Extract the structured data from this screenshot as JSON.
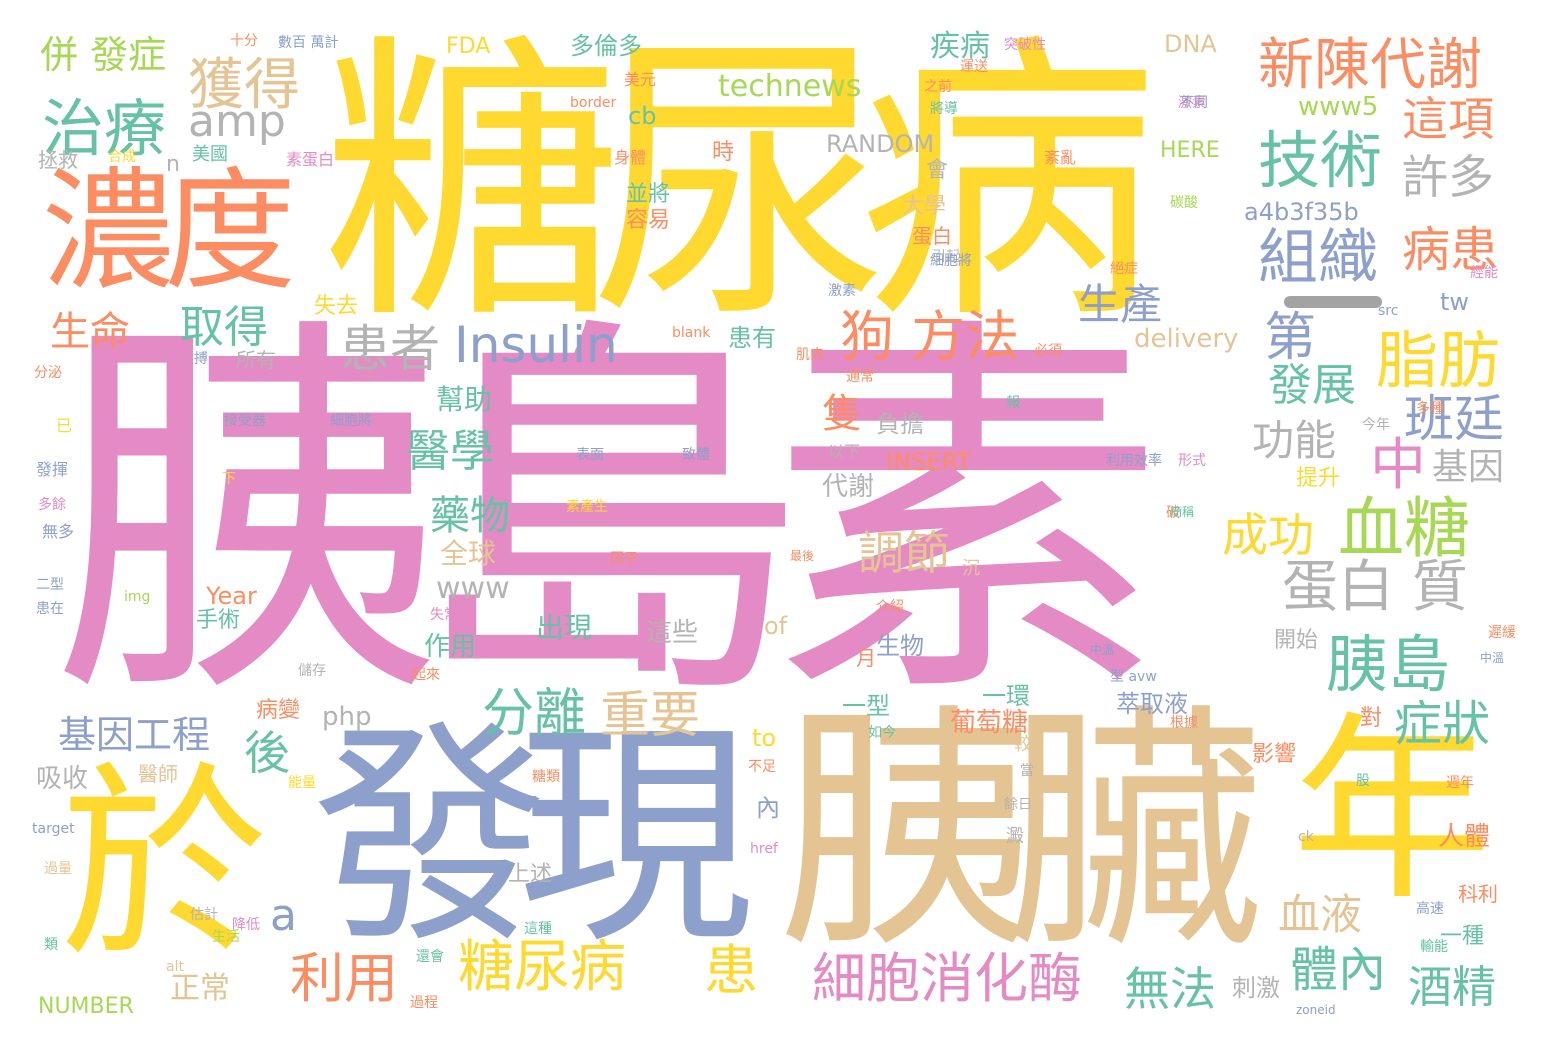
{
  "colors": {
    "pink": "#e48ac4",
    "yellow": "#ffd92f",
    "tan": "#e5c494",
    "orange": "#fc8d62",
    "blue": "#8da0cb",
    "green": "#66c2a5",
    "lime": "#a6d854",
    "gray": "#b3b3b3"
  },
  "words": {
    "w_yi_dao_su": "胰島素",
    "w_tang_niao_bing": "糖尿病",
    "w_yi_zang": "胰臟",
    "w_fa_xian": "發現",
    "w_nong_du": "濃度",
    "w_yu": "於",
    "w_nian": "年",
    "w_zhi_liao": "治療",
    "w_huo_de": "獲得",
    "w_amp": "amp",
    "w_bing_fa_zheng": "併 發症",
    "w_xin_chen_dai_xie": "新陳代謝",
    "w_zhe_xiang": "這項",
    "w_ji_shu": "技術",
    "w_xu_duo": "許多",
    "w_zu_zhi": "組織",
    "w_bing_huan": "病患",
    "w_sheng_chan": "生產",
    "w_technews": "technews",
    "w_www5": "www5",
    "w_insulin": "Insulin",
    "w_huan_zhe": "患者",
    "w_gou_fang_fa": "狗 方法",
    "w_zhi_fang": "脂肪",
    "w_di": "第",
    "w_fa_zhan": "發展",
    "w_ban_ting": "班廷",
    "w_zhong": "中",
    "w_ji_yin": "基因",
    "w_gong_neng": "功能",
    "w_cheng_gong": "成功",
    "w_xue_tang": "血糖",
    "w_dan_bai_zhi": "蛋白 質",
    "w_yi_dao": "胰島",
    "w_zheng_zhuang": "症狀",
    "w_fen_li": "分離",
    "w_zhong_yao": "重要",
    "w_ji_yin_gong_cheng": "基因工程",
    "w_yi_xue": "醫學",
    "w_yao_wu": "藥物",
    "w_tiao_jie": "調節",
    "w_qu_de": "取得",
    "w_sheng_ming": "生命",
    "w_tang_niao_bing_2": "糖尿病",
    "w_huan": "患",
    "w_xi_bao_xiao_hua_mei": "細胞消化酶",
    "w_wu_fa": "無法",
    "w_jiu_jing": "酒精",
    "w_ti_nei": "體內",
    "w_xue_ye": "血液",
    "w_li_yong": "利用",
    "w_hou": "後",
    "w_a": "a",
    "w_fda": "FDA",
    "w_duo_lun_duo": "多倫多",
    "w_ji_bing": "疾病",
    "w_dna": "DNA",
    "w_random": "RANDOM",
    "w_here": "HERE",
    "w_a4b": "a4b3f35b",
    "w_cb": "cb",
    "w_n": "n",
    "w_delivery": "delivery",
    "w_tw": "tw",
    "w_php": "php",
    "w_www": "www",
    "w_insert": "INSERT",
    "w_year": "Year",
    "w_of": "of",
    "w_to": "to",
    "w_number": "NUMBER",
    "w_target": "target",
    "w_zhe_li": "這些",
    "w_chu_xian": "出現",
    "w_zuo_yong": "作用",
    "w_shou_shu": "手術",
    "w_bing_bian": "病變",
    "w_xi_shou": "吸收",
    "w_yi_shi": "醫師",
    "w_zheng_chang": "正常",
    "w_shang_shu": "上述",
    "w_nei": "內",
    "w_yi_xing": "一型",
    "w_yi_huan": "一環",
    "w_pu_tao_tang": "葡萄糖",
    "w_cui_qu_ye": "萃取液",
    "w_ying_xiang": "影響",
    "w_ren_ti": "人體",
    "w_dui": "對",
    "w_kai_shi": "開始",
    "w_ke_li": "科利",
    "w_yi_zhong": "一種",
    "w_ci_ji": "刺激",
    "w_ti_sheng": "提升",
    "w_sheng_wu": "生物",
    "w_yue": "月",
    "w_dai_xie": "代謝",
    "w_fu_dan": "負擔",
    "w_zhi": "隻",
    "w_bang_zhu": "幫助",
    "w_quan_qiu": "全球",
    "w_huan_you": "患有",
    "w_shi_qu": "失去",
    "w_bing_jiang": "並將",
    "w_rong_yi": "容易",
    "w_da_xue": "大學",
    "w_hui": "會",
    "w_dan_bai": "蛋白",
    "w_shi": "時",
    "w_mei_guo": "美國",
    "w_zheng_jiu": "拯救",
    "w_shi_fen": "十分",
    "w_shu_bai_wan_ji": "數百 萬計",
    "w_mei_yuan": "美元",
    "w_tu_po_xing": "突破性",
    "w_shen_ti": "身體",
    "w_su_dan_bai": "素蛋白",
    "w_he_cheng": "合成",
    "w_border": "border",
    "w_bu_tong": "不同",
    "w_jiang_dao": "將導",
    "w_zhi_qian": "之前",
    "w_yun_song": "運送",
    "w_yin_qi": "引起",
    "w_ji_su": "激素",
    "w_xi_bao_jiang": "細胞將",
    "w_fen_mi": "分泌",
    "w_yi": "已",
    "w_fa_hui": "發揮",
    "w_duo_yu": "多餘",
    "w_wu_duo": "無多",
    "w_er_xing": "二型",
    "w_huan_zai": "患在",
    "w_img": "img",
    "w_shi_chang": "失常",
    "w_qi_lai": "起來",
    "w_chu_cun": "儲存",
    "w_neng_liang": "能量",
    "w_gu_ji": "估計",
    "w_jiang_di": "降低",
    "w_lei": "類",
    "w_alt": "alt",
    "w_guo_jian": "過量",
    "w_tang_lei": "糖類",
    "w_dan": "但",
    "w_huan_hui": "還會",
    "w_guo_cheng": "過程",
    "w_zhe_zhong": "這種",
    "w_sheng_huo": "生活",
    "w_href": "href",
    "w_ck": "ck",
    "w_zoneid": "zoneid",
    "w_gao_su": "高速",
    "w_zhou_nian": "週年",
    "w_chi_man": "遲緩",
    "w_zhong_liang": "中溫",
    "w_xing_ai": "型 avw",
    "w_gen_ju": "根據",
    "w_ru_jin": "如今",
    "w_bu_zu": "不足",
    "w_yu_ri": "餘日",
    "w_dang": "當",
    "w_chen": "沉",
    "w_jie_shao": "介紹",
    "w_gu": "股",
    "w_jian": "澱",
    "w_jiao": "較",
    "w_yi_xia": "以下",
    "w_biao_mian": "表面",
    "w_zhi_ti": "致體",
    "w_jie_shou_qi": "接受器",
    "w_xi_bao_jiang_2": "細胞將",
    "w_xia": "下",
    "w_su_chan_sheng": "素產生",
    "w_nei_xi_bao": "內細胞",
    "w_yin_zi": "因子",
    "w_zui_hou": "最後",
    "w_zhun_fang": "準方準確",
    "w_li_yong_lu": "利用效率",
    "w_xing_shi": "形式",
    "w_duo_zhong": "多種",
    "w_jin_nian": "今年",
    "w_bi_xu": "必須",
    "w_tong_chang": "通常",
    "w_ji_rou": "肌肉",
    "w_blank": "blank",
    "w_suo_you": "所有",
    "w_bo": "搏",
    "w_src": "src",
    "w_jing_neng": "經能",
    "w_jue_zheng": "絕症",
    "w_su_luan": "紊亂",
    "w_ji_su_2": "激素",
    "w_tan_suan": "碳酸",
    "w_bao": "報",
    "w_po": "破",
    "w_shu_neng": "輸能",
    "w_jian_ke": "簡稱"
  }
}
